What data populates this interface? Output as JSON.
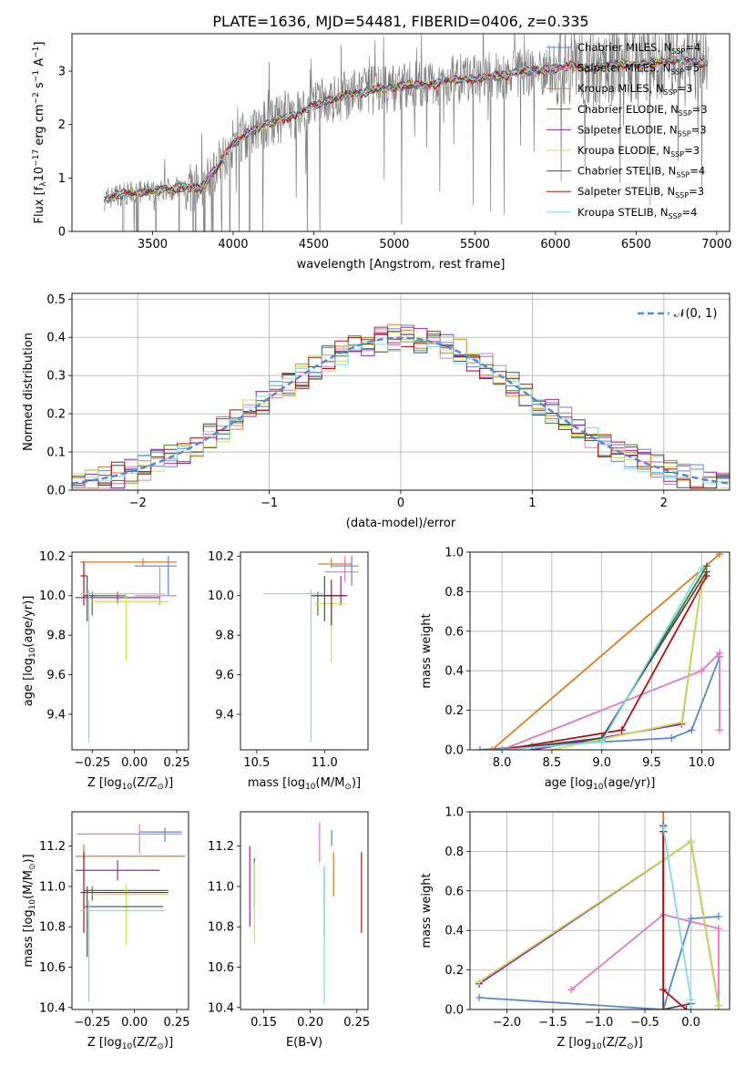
{
  "figure": {
    "title": "PLATE=1636, MJD=54481, FIBERID=0406, z=0.335"
  },
  "colors": {
    "Chabrier MILES": "#5b86d1",
    "Salpeter MILES": "#e377c2",
    "Kroupa MILES": "#e07a1f",
    "Chabrier ELODIE": "#3c7a2f",
    "Salpeter ELODIE": "#9b27b0",
    "Kroupa ELODIE": "#c8e05a",
    "Chabrier STELIB": "#4d4d4d",
    "Salpeter STELIB": "#b01010",
    "Kroupa STELIB": "#7fdbe6",
    "data": "#808080",
    "gauss": "#5b86d1"
  },
  "chart_data": [
    {
      "id": "spectrum",
      "type": "line",
      "xlabel": "wavelength [Angstrom, rest frame]",
      "ylabel": "Flux [f",
      "ylabel_sub": "λ",
      "ylabel_rest": "10",
      "ylabel_exp": "−17",
      "ylabel_units": " erg cm",
      "ylabel_exp2": "−2",
      "ylabel_units2": " s",
      "ylabel_exp3": "−1",
      "ylabel_units3": " A",
      "ylabel_exp4": "−1",
      "ylabel_close": "]",
      "xlim": [
        3000,
        7080
      ],
      "ylim": [
        0,
        3.7
      ],
      "xticks": [
        "3500",
        "4000",
        "4500",
        "5000",
        "5500",
        "6000",
        "6500",
        "7000"
      ],
      "yticks": [
        "0",
        "1",
        "2",
        "3"
      ],
      "continuum": {
        "x": [
          3200,
          3300,
          3400,
          3500,
          3600,
          3700,
          3800,
          3900,
          4000,
          4100,
          4200,
          4300,
          4400,
          4500,
          4600,
          4700,
          4800,
          4900,
          5000,
          5100,
          5200,
          5300,
          5400,
          5500,
          5600,
          5700,
          5800,
          5900,
          6000,
          6100,
          6200,
          6300,
          6400,
          6500,
          6600,
          6700,
          6800,
          6900
        ],
        "y": [
          0.6,
          0.7,
          0.72,
          0.75,
          0.8,
          0.82,
          0.8,
          1.2,
          1.65,
          1.85,
          2.0,
          2.1,
          2.2,
          2.35,
          2.45,
          2.55,
          2.6,
          2.65,
          2.7,
          2.75,
          2.72,
          2.8,
          2.85,
          2.85,
          2.9,
          2.92,
          3.0,
          3.0,
          3.05,
          3.1,
          3.05,
          3.1,
          3.15,
          3.1,
          3.15,
          3.2,
          3.2,
          3.15
        ]
      },
      "legend": [
        {
          "name": "Chabrier MILES, N",
          "sub": "SSP",
          "val": "=4"
        },
        {
          "name": "Salpeter MILES, N",
          "sub": "SSP",
          "val": "=5"
        },
        {
          "name": "Kroupa MILES, N",
          "sub": "SSP",
          "val": "=3"
        },
        {
          "name": "Chabrier ELODIE, N",
          "sub": "SSP",
          "val": "=3"
        },
        {
          "name": "Salpeter ELODIE, N",
          "sub": "SSP",
          "val": "=3"
        },
        {
          "name": "Kroupa ELODIE, N",
          "sub": "SSP",
          "val": "=3"
        },
        {
          "name": "Chabrier STELIB, N",
          "sub": "SSP",
          "val": "=4"
        },
        {
          "name": "Salpeter STELIB, N",
          "sub": "SSP",
          "val": "=3"
        },
        {
          "name": "Kroupa STELIB, N",
          "sub": "SSP",
          "val": "=4"
        }
      ],
      "legend_placement": "top-right"
    },
    {
      "id": "residuals",
      "type": "line",
      "xlabel": "(data-model)/error",
      "ylabel": "Normed distribution",
      "xlim": [
        -2.5,
        2.5
      ],
      "ylim": [
        0,
        0.515
      ],
      "xticks": [
        "−2",
        "−1",
        "0",
        "1",
        "2"
      ],
      "yticks": [
        "0.0",
        "0.1",
        "0.2",
        "0.3",
        "0.4",
        "0.5"
      ],
      "legend_label": "𝒩(0, 1)",
      "legend_placement": "top-right",
      "grid": true,
      "bin_width": 0.1
    },
    {
      "id": "age_vs_Z",
      "type": "scatter",
      "xlabel": "Z [log",
      "xlabel_sub": "10",
      "xlabel_rest": "(Z/Z",
      "xlabel_sub2": "⊙",
      "xlabel_end": ")]",
      "ylabel": "age  [log",
      "ylabel_sub": "10",
      "ylabel_rest": "(age/yr)]",
      "xlim": [
        -0.37,
        0.32
      ],
      "ylim": [
        9.22,
        10.22
      ],
      "xticks": [
        "−0.25",
        "0.00",
        "0.25"
      ],
      "yticks": [
        "9.4",
        "9.6",
        "9.8",
        "10.0",
        "10.2"
      ],
      "points": [
        {
          "model": "Chabrier MILES",
          "x": 0.2,
          "y": 10.15,
          "xerr": [
            0.2,
            0.05
          ],
          "yerr": [
            0.15,
            0.05
          ]
        },
        {
          "model": "Salpeter MILES",
          "x": 0.15,
          "y": 10.0,
          "xerr": [
            0.15,
            0.1
          ],
          "yerr": [
            0.05,
            0.15
          ]
        },
        {
          "model": "Kroupa MILES",
          "x": 0.05,
          "y": 10.17,
          "xerr": [
            0.37,
            0.2
          ],
          "yerr": [
            0.02,
            0.02
          ]
        },
        {
          "model": "Chabrier ELODIE",
          "x": -0.25,
          "y": 10.0,
          "xerr": [
            0.05,
            0.2
          ],
          "yerr": [
            0.1,
            0.02
          ]
        },
        {
          "model": "Salpeter ELODIE",
          "x": -0.1,
          "y": 9.99,
          "xerr": [
            0.25,
            0.25
          ],
          "yerr": [
            0.03,
            0.03
          ]
        },
        {
          "model": "Kroupa ELODIE",
          "x": -0.05,
          "y": 9.97,
          "xerr": [
            0.2,
            0.25
          ],
          "yerr": [
            0.3,
            0.04
          ]
        },
        {
          "model": "Chabrier STELIB",
          "x": -0.28,
          "y": 10.0,
          "xerr": [
            0.02,
            0.05
          ],
          "yerr": [
            0.13,
            0.1
          ]
        },
        {
          "model": "Salpeter STELIB",
          "x": -0.3,
          "y": 10.1,
          "xerr": [
            0.02,
            0.02
          ],
          "yerr": [
            0.15,
            0.07
          ]
        },
        {
          "model": "Kroupa STELIB",
          "x": -0.27,
          "y": 10.01,
          "xerr": [
            0.05,
            0.45
          ],
          "yerr": [
            0.75,
            0.02
          ]
        }
      ]
    },
    {
      "id": "age_vs_mass",
      "type": "scatter",
      "xlabel": "mass [log",
      "xlabel_sub": "10",
      "xlabel_rest": "(M/M",
      "xlabel_sub2": "⊙",
      "xlabel_end": ")]",
      "xlim": [
        10.38,
        11.32
      ],
      "ylim": [
        9.22,
        10.22
      ],
      "xticks": [
        "10.5",
        "11.0"
      ],
      "yticks": [
        "9.4",
        "9.6",
        "9.8",
        "10.0",
        "10.2"
      ],
      "points": [
        {
          "model": "Chabrier MILES",
          "x": 11.2,
          "y": 10.15,
          "xerr": [
            0.15,
            0.05
          ],
          "yerr": [
            0.1,
            0.05
          ]
        },
        {
          "model": "Salpeter MILES",
          "x": 11.15,
          "y": 10.12,
          "xerr": [
            0.15,
            0.1
          ],
          "yerr": [
            0.05,
            0.08
          ]
        },
        {
          "model": "Kroupa MILES",
          "x": 11.05,
          "y": 10.16,
          "xerr": [
            0.1,
            0.15
          ],
          "yerr": [
            0.02,
            0.03
          ]
        },
        {
          "model": "Chabrier ELODIE",
          "x": 10.95,
          "y": 10.0,
          "xerr": [
            0.05,
            0.15
          ],
          "yerr": [
            0.1,
            0.02
          ]
        },
        {
          "model": "Salpeter ELODIE",
          "x": 11.12,
          "y": 10.0,
          "xerr": [
            0.1,
            0.05
          ],
          "yerr": [
            0.05,
            0.1
          ]
        },
        {
          "model": "Kroupa ELODIE",
          "x": 11.05,
          "y": 9.96,
          "xerr": [
            0.12,
            0.1
          ],
          "yerr": [
            0.3,
            0.05
          ]
        },
        {
          "model": "Chabrier STELIB",
          "x": 11.0,
          "y": 10.0,
          "xerr": [
            0.1,
            0.1
          ],
          "yerr": [
            0.13,
            0.1
          ]
        },
        {
          "model": "Salpeter STELIB",
          "x": 11.05,
          "y": 10.0,
          "xerr": [
            0.05,
            0.1
          ],
          "yerr": [
            0.15,
            0.08
          ]
        },
        {
          "model": "Kroupa STELIB",
          "x": 10.9,
          "y": 10.01,
          "xerr": [
            0.35,
            0.1
          ],
          "yerr": [
            0.75,
            0.02
          ]
        }
      ]
    },
    {
      "id": "massweight_vs_age",
      "type": "line",
      "xlabel": "age  [log",
      "xlabel_sub": "10",
      "xlabel_rest": "(age/yr)]",
      "ylabel": "mass weight",
      "xlim": [
        7.68,
        10.28
      ],
      "ylim": [
        0,
        1.0
      ],
      "xticks": [
        "8.0",
        "8.5",
        "9.0",
        "9.5",
        "10.0"
      ],
      "yticks": [
        "0.0",
        "0.2",
        "0.4",
        "0.6",
        "0.8",
        "1.0"
      ],
      "grid": true,
      "series": [
        {
          "model": "Chabrier MILES",
          "x": [
            7.78,
            8.3,
            9.7,
            9.9,
            10.18
          ],
          "y": [
            0.0,
            0.02,
            0.06,
            0.1,
            0.47
          ]
        },
        {
          "model": "Salpeter MILES",
          "x": [
            8.0,
            10.0,
            10.18,
            10.18
          ],
          "y": [
            0.0,
            0.4,
            0.49,
            0.1
          ]
        },
        {
          "model": "Kroupa MILES",
          "x": [
            7.9,
            10.18
          ],
          "y": [
            0.0,
            0.99
          ]
        },
        {
          "model": "Chabrier ELODIE",
          "x": [
            8.0,
            9.0,
            10.05
          ],
          "y": [
            0.0,
            0.05,
            0.93
          ]
        },
        {
          "model": "Salpeter ELODIE",
          "x": [
            8.3,
            9.8,
            10.0
          ],
          "y": [
            0.0,
            0.13,
            0.85
          ]
        },
        {
          "model": "Kroupa ELODIE",
          "x": [
            8.5,
            9.8,
            10.0
          ],
          "y": [
            0.0,
            0.14,
            0.85
          ]
        },
        {
          "model": "Chabrier STELIB",
          "x": [
            8.0,
            9.0,
            10.05
          ],
          "y": [
            0.0,
            0.06,
            0.9
          ]
        },
        {
          "model": "Salpeter STELIB",
          "x": [
            8.0,
            9.2,
            10.05
          ],
          "y": [
            0.0,
            0.1,
            0.88
          ]
        },
        {
          "model": "Kroupa STELIB",
          "x": [
            8.0,
            9.0,
            10.0
          ],
          "y": [
            0.0,
            0.04,
            0.92
          ]
        }
      ]
    },
    {
      "id": "mass_vs_Z",
      "type": "scatter",
      "xlabel": "Z [log",
      "xlabel_sub": "10",
      "xlabel_rest": "(Z/Z",
      "xlabel_sub2": "⊙",
      "xlabel_end": ")]",
      "ylabel": "mass [log",
      "ylabel_sub": "10",
      "ylabel_rest": "(M/M",
      "ylabel_sub2": "⊙",
      "ylabel_end": ")]",
      "xlim": [
        -0.37,
        0.32
      ],
      "ylim": [
        10.39,
        11.37
      ],
      "xticks": [
        "−0.25",
        "0.00",
        "0.25"
      ],
      "yticks": [
        "10.4",
        "10.6",
        "10.8",
        "11.0",
        "11.2"
      ],
      "points": [
        {
          "model": "Chabrier MILES",
          "x": 0.18,
          "y": 11.27,
          "xerr": [
            0.15,
            0.1
          ],
          "yerr": [
            0.05,
            0.02
          ]
        },
        {
          "model": "Salpeter MILES",
          "x": 0.03,
          "y": 11.26,
          "xerr": [
            0.37,
            0.25
          ],
          "yerr": [
            0.1,
            0.05
          ]
        },
        {
          "model": "Kroupa MILES",
          "x": -0.3,
          "y": 11.15,
          "xerr": [
            0.05,
            0.6
          ],
          "yerr": [
            0.05,
            0.06
          ]
        },
        {
          "model": "Chabrier ELODIE",
          "x": -0.25,
          "y": 10.98,
          "xerr": [
            0.05,
            0.45
          ],
          "yerr": [
            0.05,
            0.02
          ]
        },
        {
          "model": "Salpeter ELODIE",
          "x": -0.1,
          "y": 11.08,
          "xerr": [
            0.25,
            0.25
          ],
          "yerr": [
            0.05,
            0.05
          ]
        },
        {
          "model": "Kroupa ELODIE",
          "x": -0.05,
          "y": 10.96,
          "xerr": [
            0.2,
            0.25
          ],
          "yerr": [
            0.25,
            0.05
          ]
        },
        {
          "model": "Chabrier STELIB",
          "x": -0.28,
          "y": 10.9,
          "xerr": [
            0.02,
            0.45
          ],
          "yerr": [
            0.25,
            0.1
          ]
        },
        {
          "model": "Salpeter STELIB",
          "x": -0.3,
          "y": 10.97,
          "xerr": [
            0.02,
            0.5
          ],
          "yerr": [
            0.2,
            0.2
          ]
        },
        {
          "model": "Kroupa STELIB",
          "x": -0.27,
          "y": 10.88,
          "xerr": [
            0.05,
            0.45
          ],
          "yerr": [
            0.45,
            0.05
          ]
        }
      ]
    },
    {
      "id": "mass_vs_EBV",
      "type": "scatter",
      "xlabel": "E(B-V)",
      "xlim": [
        0.125,
        0.262
      ],
      "ylim": [
        10.39,
        11.37
      ],
      "xticks": [
        "0.15",
        "0.20",
        "0.25"
      ],
      "yticks": [
        "10.4",
        "10.6",
        "10.8",
        "11.0",
        "11.2"
      ],
      "points": [
        {
          "model": "Chabrier MILES",
          "x": 0.223,
          "y": 11.25,
          "yerr": [
            0.05,
            0.03
          ]
        },
        {
          "model": "Salpeter MILES",
          "x": 0.21,
          "y": 11.22,
          "yerr": [
            0.1,
            0.1
          ]
        },
        {
          "model": "Kroupa MILES",
          "x": 0.225,
          "y": 11.1,
          "yerr": [
            0.15,
            0.07
          ]
        },
        {
          "model": "Chabrier ELODIE",
          "x": 0.14,
          "y": 11.0,
          "yerr": [
            0.1,
            0.14
          ]
        },
        {
          "model": "Salpeter ELODIE",
          "x": 0.135,
          "y": 11.0,
          "yerr": [
            0.2,
            0.2
          ]
        },
        {
          "model": "Kroupa ELODIE",
          "x": 0.14,
          "y": 10.92,
          "yerr": [
            0.2,
            0.2
          ]
        },
        {
          "model": "Chabrier STELIB",
          "x": 0.215,
          "y": 10.95,
          "yerr": [
            0.2,
            0.15
          ]
        },
        {
          "model": "Salpeter STELIB",
          "x": 0.255,
          "y": 10.97,
          "yerr": [
            0.2,
            0.2
          ]
        },
        {
          "model": "Kroupa STELIB",
          "x": 0.215,
          "y": 10.8,
          "yerr": [
            0.38,
            0.3
          ]
        }
      ]
    },
    {
      "id": "massweight_vs_Z",
      "type": "line",
      "xlabel": "Z [log",
      "xlabel_sub": "10",
      "xlabel_rest": "(Z/Z",
      "xlabel_sub2": "⊙",
      "xlabel_end": ")]",
      "ylabel": "mass weight",
      "xlim": [
        -2.4,
        0.42
      ],
      "ylim": [
        0,
        1.0
      ],
      "xticks": [
        "−2.0",
        "−1.5",
        "−1.0",
        "−0.5",
        "0.0"
      ],
      "yticks": [
        "0.0",
        "0.2",
        "0.4",
        "0.6",
        "0.8",
        "1.0"
      ],
      "grid": true,
      "series": [
        {
          "model": "Chabrier MILES",
          "x": [
            -2.3,
            -0.3,
            0.0,
            0.3
          ],
          "y": [
            0.06,
            0.0,
            0.46,
            0.47
          ]
        },
        {
          "model": "Salpeter MILES",
          "x": [
            -1.3,
            -0.3,
            0.3,
            0.3
          ],
          "y": [
            0.1,
            0.48,
            0.41,
            0.0
          ]
        },
        {
          "model": "Kroupa MILES",
          "x": [
            -0.3,
            -0.3
          ],
          "y": [
            1.0,
            0.0
          ]
        },
        {
          "model": "Chabrier ELODIE",
          "x": [
            -2.3,
            0.0,
            0.3
          ],
          "y": [
            0.13,
            0.85,
            0.02
          ]
        },
        {
          "model": "Salpeter ELODIE",
          "x": [
            -2.3,
            0.0,
            0.3
          ],
          "y": [
            0.13,
            0.85,
            0.02
          ]
        },
        {
          "model": "Kroupa ELODIE",
          "x": [
            -2.3,
            0.0,
            0.3
          ],
          "y": [
            0.14,
            0.85,
            0.02
          ]
        },
        {
          "model": "Chabrier STELIB",
          "x": [
            -0.3,
            -0.3,
            0.0
          ],
          "y": [
            0.93,
            0.0,
            0.03
          ]
        },
        {
          "model": "Salpeter STELIB",
          "x": [
            -0.3,
            -0.3,
            -0.05
          ],
          "y": [
            0.9,
            0.1,
            0.0
          ]
        },
        {
          "model": "Kroupa STELIB",
          "x": [
            -0.3,
            0.0,
            0.0
          ],
          "y": [
            0.92,
            0.05,
            0.0
          ]
        }
      ]
    }
  ]
}
